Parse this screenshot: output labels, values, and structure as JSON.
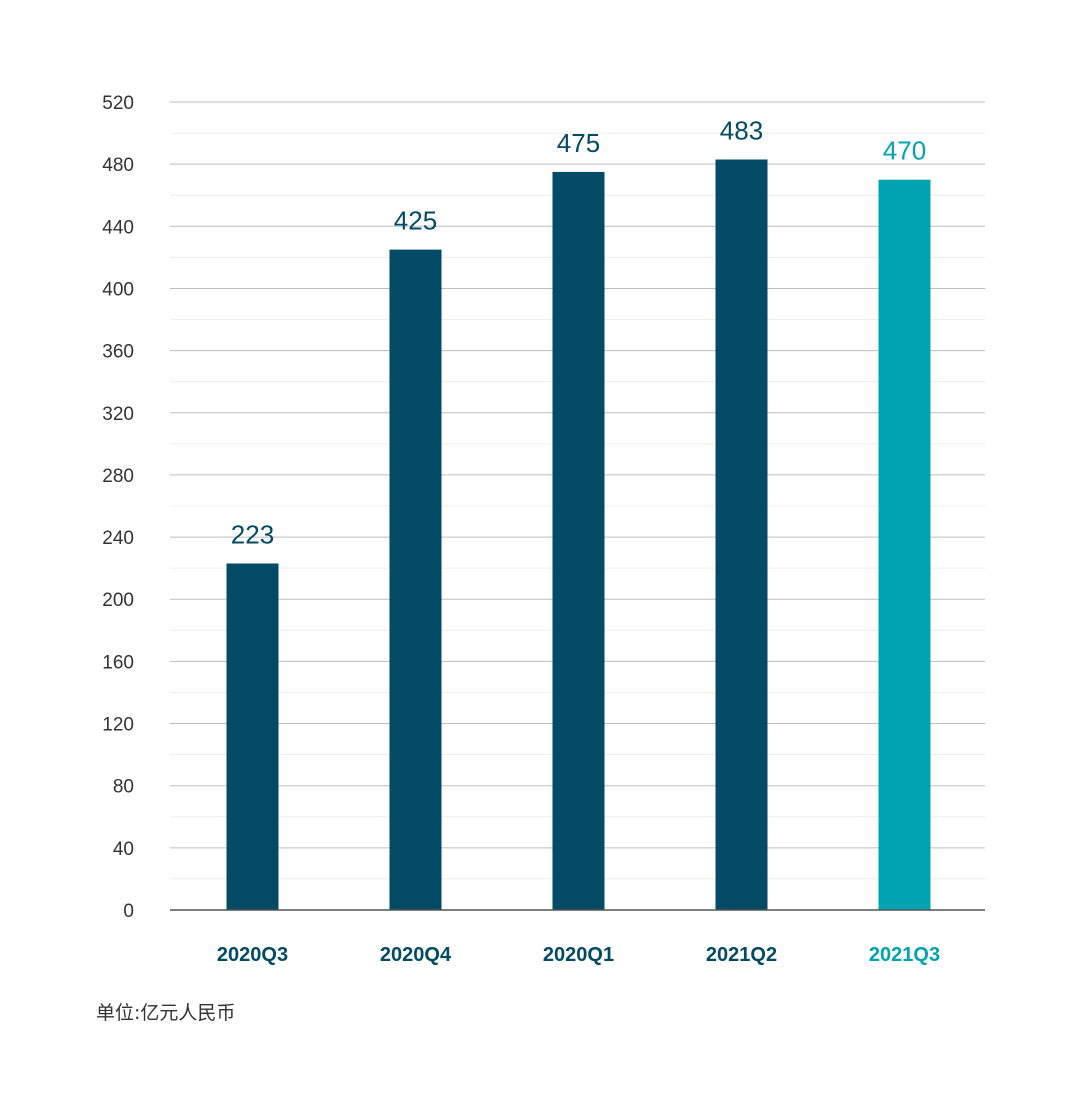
{
  "chart_data": {
    "type": "bar",
    "categories": [
      "2020Q3",
      "2020Q4",
      "2020Q1",
      "2021Q2",
      "2021Q3"
    ],
    "values": [
      223,
      425,
      475,
      483,
      470
    ],
    "ylim": [
      0,
      520
    ],
    "yticks": [
      0,
      40,
      80,
      120,
      160,
      200,
      240,
      280,
      320,
      360,
      400,
      440,
      480,
      520
    ],
    "grid": true,
    "colors": {
      "bar": "#034a65",
      "highlight": "#00a3b1",
      "grid_major": "#bdbdbd",
      "grid_minor": "#ececec",
      "axis": "#555555"
    },
    "highlight_index": 4,
    "unit_label": "单位:亿元人民币"
  }
}
